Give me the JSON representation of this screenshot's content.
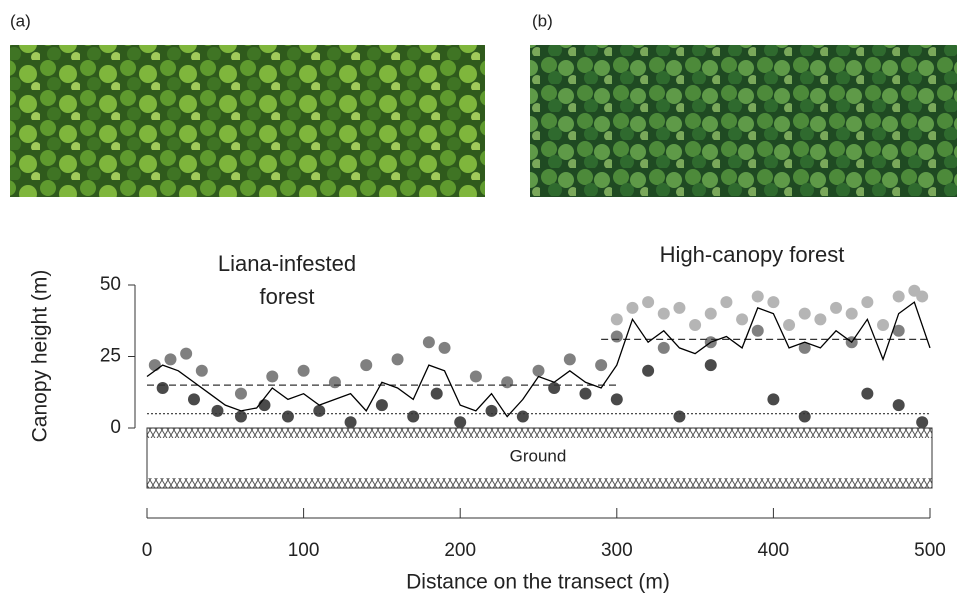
{
  "panel_labels": [
    "(a)",
    "(b)"
  ],
  "chart_data": {
    "type": "scatter",
    "x_label": "Distance on the transect (m)",
    "y_label": "Canopy height (m)",
    "xlim": [
      0,
      500
    ],
    "xticks": [
      0,
      100,
      200,
      300,
      400,
      500
    ],
    "ylim": [
      0,
      50
    ],
    "yticks": [
      0,
      25,
      50
    ],
    "annotations": [
      {
        "lines": [
          "Liana-infested",
          "forest"
        ]
      },
      {
        "lines": [
          "High-canopy forest"
        ]
      },
      {
        "lines": [
          "Ground"
        ]
      }
    ],
    "point_groups": [
      {
        "color": "#b5b5b5",
        "x": [
          300,
          310,
          320,
          330,
          340,
          350,
          360,
          370,
          380,
          390,
          400,
          410,
          420,
          430,
          440,
          450,
          460,
          470,
          480,
          490,
          495
        ],
        "y": [
          38,
          42,
          44,
          40,
          42,
          36,
          40,
          44,
          38,
          46,
          44,
          36,
          40,
          38,
          42,
          40,
          44,
          36,
          46,
          48,
          46
        ]
      },
      {
        "color": "#808080",
        "x": [
          5,
          15,
          25,
          35,
          60,
          80,
          100,
          120,
          140,
          160,
          180,
          190,
          210,
          230,
          250,
          270,
          290,
          300,
          330,
          360,
          390,
          420,
          450,
          480
        ],
        "y": [
          22,
          24,
          26,
          20,
          12,
          18,
          20,
          16,
          22,
          24,
          30,
          28,
          18,
          16,
          20,
          24,
          22,
          32,
          28,
          30,
          34,
          28,
          30,
          34
        ]
      },
      {
        "color": "#4a4a4a",
        "x": [
          10,
          30,
          45,
          60,
          75,
          90,
          110,
          130,
          150,
          170,
          185,
          200,
          220,
          240,
          260,
          280,
          300,
          320,
          340,
          360,
          400,
          420,
          460,
          480,
          495
        ],
        "y": [
          14,
          10,
          6,
          4,
          8,
          4,
          6,
          2,
          8,
          4,
          12,
          2,
          6,
          4,
          14,
          12,
          10,
          20,
          4,
          22,
          10,
          4,
          12,
          8,
          2
        ]
      }
    ],
    "line": {
      "color": "#000000",
      "x": [
        0,
        10,
        20,
        30,
        40,
        50,
        60,
        70,
        80,
        90,
        100,
        110,
        120,
        130,
        140,
        150,
        160,
        170,
        180,
        190,
        200,
        210,
        220,
        230,
        240,
        250,
        260,
        270,
        280,
        290,
        300,
        310,
        320,
        330,
        340,
        350,
        360,
        370,
        380,
        390,
        400,
        410,
        420,
        430,
        440,
        450,
        460,
        470,
        480,
        490,
        500
      ],
      "y": [
        18,
        22,
        20,
        16,
        12,
        8,
        6,
        7,
        14,
        10,
        12,
        8,
        10,
        12,
        6,
        16,
        14,
        10,
        22,
        20,
        8,
        6,
        12,
        4,
        10,
        18,
        16,
        20,
        16,
        14,
        22,
        38,
        30,
        34,
        28,
        26,
        30,
        32,
        28,
        42,
        40,
        28,
        30,
        28,
        34,
        30,
        38,
        24,
        40,
        44,
        28
      ]
    },
    "reference_lines": [
      {
        "value": 15,
        "xrange": [
          0,
          300
        ],
        "style": "dashed"
      },
      {
        "value": 31,
        "xrange": [
          290,
          500
        ],
        "style": "dashed"
      },
      {
        "value": 5,
        "xrange": [
          0,
          500
        ],
        "style": "dotted"
      }
    ]
  }
}
